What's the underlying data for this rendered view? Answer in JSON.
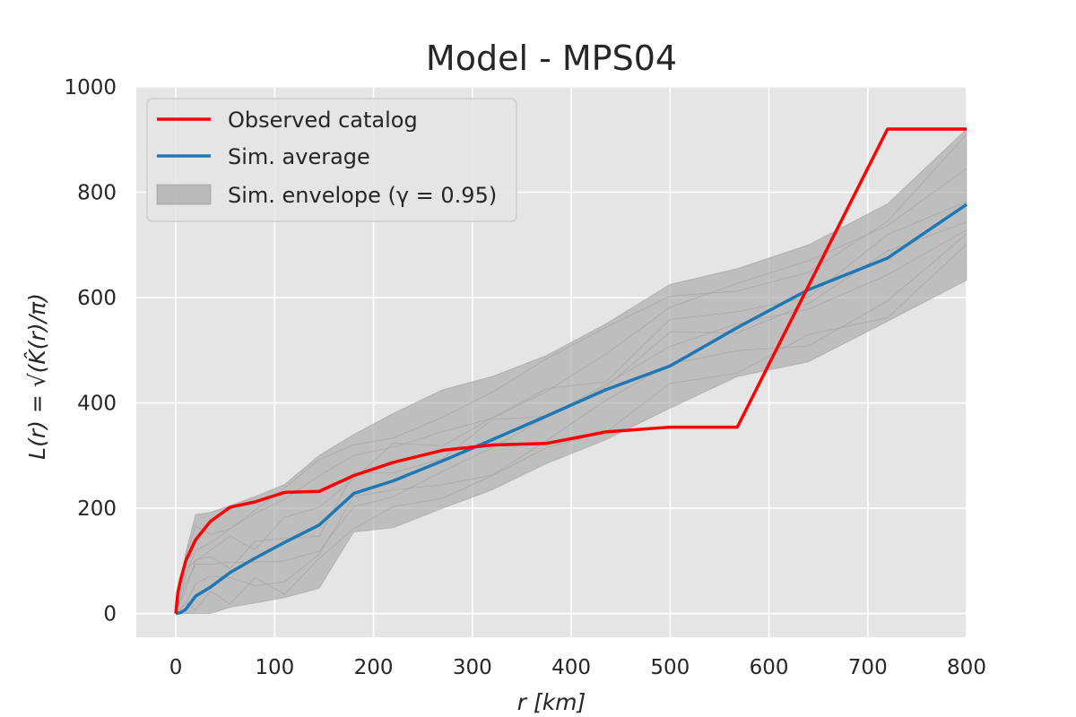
{
  "chart_data": {
    "type": "line",
    "title": "Model - MPS04",
    "xlabel": "r  [km]",
    "ylabel": "L(r) = √(K̂(r)/π)",
    "xlim": [
      -40,
      800
    ],
    "ylim": [
      -45,
      1000
    ],
    "xticks": [
      0,
      100,
      200,
      300,
      400,
      500,
      600,
      700,
      800
    ],
    "yticks": [
      0,
      200,
      400,
      600,
      800,
      1000
    ],
    "grid": true,
    "legend_position": "top-left",
    "legend": [
      "Observed catalog",
      "Sim. average",
      "Sim. envelope (γ = 0.95)"
    ],
    "series": [
      {
        "name": "Observed catalog",
        "color": "#ff0000",
        "x": [
          0,
          2,
          5,
          10,
          20,
          35,
          55,
          80,
          110,
          145,
          180,
          220,
          270,
          320,
          375,
          435,
          500,
          568,
          720,
          800
        ],
        "y": [
          0,
          40,
          65,
          100,
          140,
          175,
          202,
          212,
          230,
          232,
          262,
          287,
          310,
          320,
          323,
          345,
          354,
          354,
          920,
          920
        ]
      },
      {
        "name": "Sim. average",
        "color": "#1f77b4",
        "x": [
          0,
          5,
          10,
          20,
          35,
          55,
          80,
          110,
          145,
          180,
          220,
          270,
          320,
          375,
          435,
          500,
          568,
          640,
          720,
          800
        ],
        "y": [
          0,
          2,
          8,
          33,
          50,
          78,
          105,
          135,
          168,
          228,
          252,
          290,
          330,
          375,
          425,
          470,
          543,
          615,
          675,
          777
        ]
      }
    ],
    "envelope": {
      "name": "Sim. envelope (γ = 0.95)",
      "color": "#808080",
      "x": [
        0,
        10,
        20,
        35,
        55,
        80,
        110,
        145,
        180,
        220,
        270,
        320,
        375,
        435,
        500,
        568,
        640,
        720,
        800
      ],
      "upper": [
        0,
        115,
        188,
        192,
        205,
        222,
        245,
        300,
        340,
        380,
        425,
        450,
        490,
        550,
        625,
        655,
        700,
        778,
        920
      ],
      "lower": [
        0,
        0,
        0,
        0,
        12,
        20,
        30,
        48,
        155,
        163,
        200,
        235,
        285,
        330,
        390,
        450,
        478,
        555,
        633
      ]
    }
  }
}
